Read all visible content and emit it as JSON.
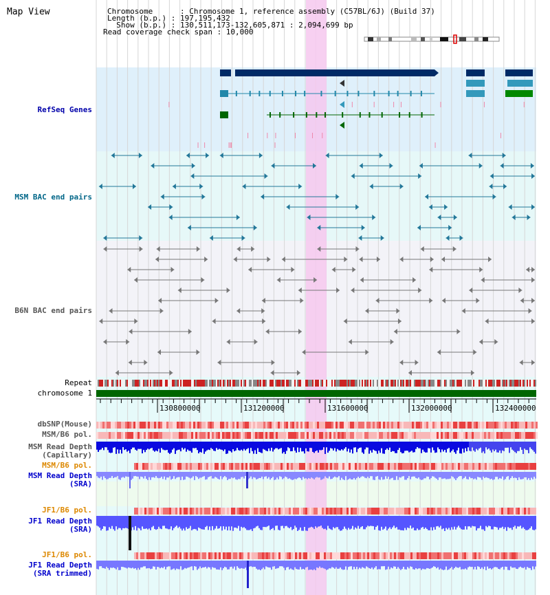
{
  "title": "Map View",
  "header": {
    "chromosome": "Chromosome      : Chromosome 1, reference assembly (C57BL/6J) (Build 37)",
    "length": "Length (b.p.) : 197,195,432",
    "show": "  Show (b.p.) : 130,511,173-132,605,871 : 2,094,699 bp",
    "coverage": "Read coverage check span : 10,000"
  },
  "tracks": {
    "refseq": "RefSeq Genes",
    "msm_bac": "MSM BAC end pairs",
    "b6n_bac": "B6N BAC end pairs",
    "repeat": "Repeat",
    "chromosome": "chromosome 1",
    "dbsnp": "dbSNP(Mouse)",
    "msm_b6_pol": "MSM/B6 pol.",
    "msm_depth_cap_1": "MSM Read Depth",
    "msm_depth_cap_2": "(Capillary)",
    "msm_b6_pol2": "MSM/B6 pol.",
    "msm_depth_sra_1": "MSM Read Depth",
    "msm_depth_sra_2": "(SRA)",
    "jf1_b6_pol": "JF1/B6 pol.",
    "jf1_depth_sra_1": "JF1 Read Depth",
    "jf1_depth_sra_2": "(SRA)",
    "jf1_b6_pol2": "JF1/B6 pol.",
    "jf1_depth_trim_1": "JF1 Read Depth",
    "jf1_depth_trim_2": "(SRA trimmed)"
  },
  "axis": {
    "ticks": [
      "130800000",
      "131200000",
      "131600000",
      "132000000",
      "132400000"
    ]
  },
  "colors": {
    "refseq_label": "#0000aa",
    "msm_label": "#006688",
    "b6n_label": "#555555",
    "pol_label": "#dd8800",
    "depth_label": "#0000cc",
    "highlight": "#f6c8ee",
    "chromosome_bar": "#006600"
  }
}
